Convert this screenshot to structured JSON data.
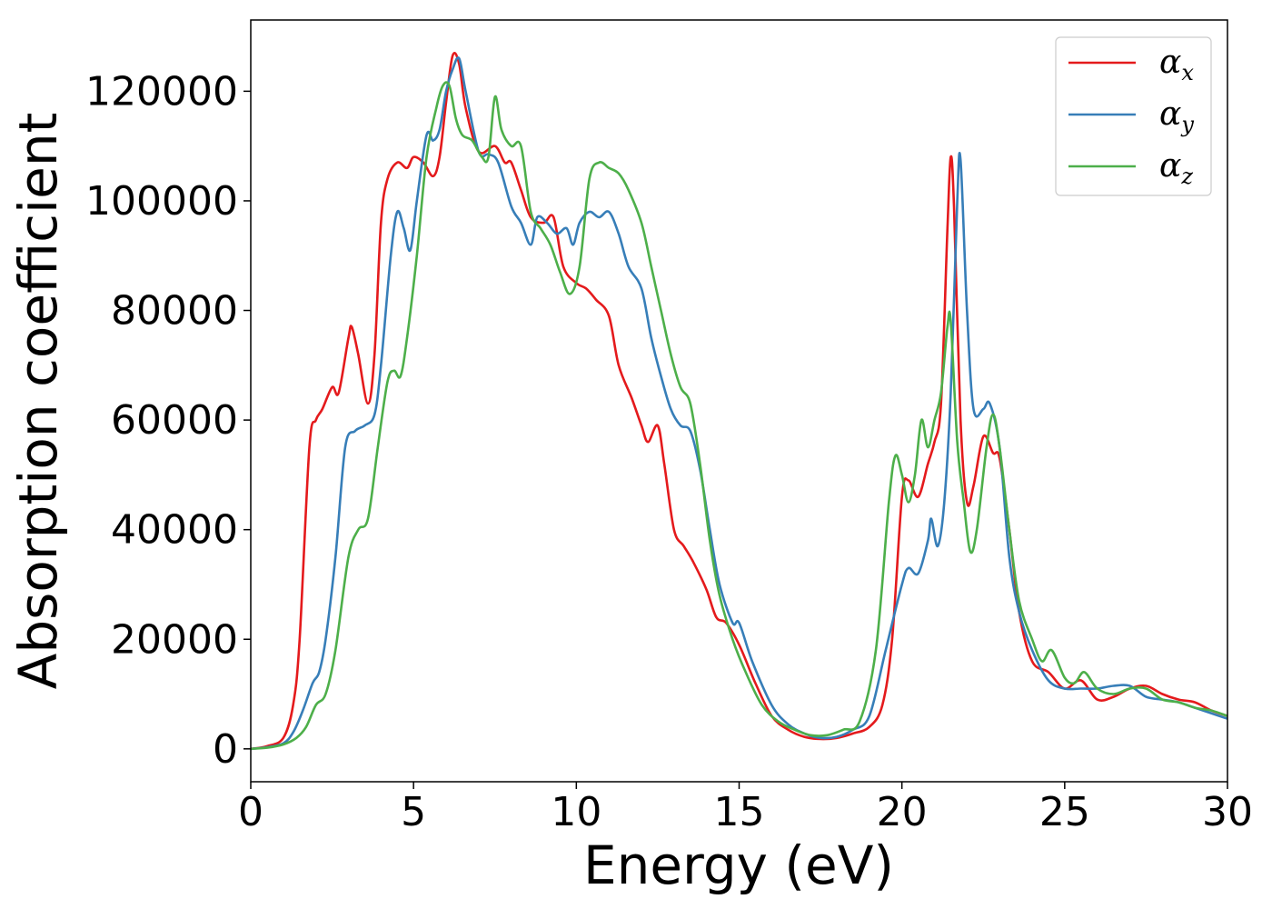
{
  "chart_data": {
    "type": "line",
    "xlabel": "Energy (eV)",
    "ylabel": "Absorption coefficient",
    "xlim": [
      0,
      30
    ],
    "ylim": [
      -6000,
      133000
    ],
    "xticks": [
      0,
      5,
      10,
      15,
      20,
      25,
      30
    ],
    "yticks": [
      0,
      20000,
      40000,
      60000,
      80000,
      100000,
      120000
    ],
    "grid": false,
    "legend_position": "top-right",
    "series": [
      {
        "name": "α_x",
        "color": "#e41a1c",
        "x": [
          0,
          0.5,
          1.0,
          1.3,
          1.5,
          1.8,
          2.0,
          2.2,
          2.5,
          2.7,
          3.0,
          3.1,
          3.3,
          3.6,
          3.8,
          4.0,
          4.2,
          4.5,
          4.8,
          5.0,
          5.3,
          5.6,
          5.8,
          6.0,
          6.2,
          6.4,
          6.6,
          7.0,
          7.5,
          7.8,
          8.0,
          8.3,
          8.6,
          9.0,
          9.3,
          9.6,
          10.0,
          10.3,
          10.6,
          11.0,
          11.3,
          11.7,
          12.0,
          12.2,
          12.5,
          12.7,
          13.0,
          13.3,
          13.6,
          14.0,
          14.3,
          14.6,
          15.0,
          15.5,
          16.0,
          16.5,
          17.0,
          17.5,
          18.0,
          18.5,
          19.0,
          19.4,
          19.7,
          20.0,
          20.2,
          20.5,
          20.8,
          21.0,
          21.2,
          21.4,
          21.5,
          21.6,
          21.8,
          22.0,
          22.2,
          22.5,
          22.8,
          23.0,
          23.3,
          23.6,
          24.0,
          24.5,
          25.0,
          25.5,
          26.0,
          26.5,
          27.0,
          27.5,
          28.0,
          28.5,
          29.0,
          29.5,
          30.0
        ],
        "y": [
          0,
          500,
          2000,
          8000,
          20000,
          55000,
          60000,
          62000,
          66000,
          65000,
          75000,
          77000,
          72000,
          63000,
          72000,
          96000,
          104000,
          107000,
          106000,
          108000,
          107000,
          104500,
          108000,
          118000,
          126500,
          125000,
          117000,
          109000,
          110000,
          107000,
          107000,
          102000,
          97000,
          96000,
          97000,
          88000,
          85000,
          84000,
          82000,
          79000,
          70000,
          64000,
          59000,
          56000,
          59000,
          52000,
          40000,
          37000,
          34000,
          29000,
          24000,
          23000,
          19000,
          12000,
          6000,
          3500,
          2200,
          1800,
          2000,
          2800,
          4000,
          8000,
          20000,
          46000,
          49000,
          46000,
          52000,
          56000,
          63000,
          95000,
          108000,
          99000,
          60000,
          45000,
          48000,
          57000,
          54000,
          53000,
          40000,
          25000,
          16000,
          14000,
          11000,
          12500,
          9000,
          9500,
          11000,
          11500,
          10000,
          9000,
          8500,
          7000,
          6000
        ]
      },
      {
        "name": "α_y",
        "color": "#377eb8",
        "x": [
          0,
          0.5,
          1.0,
          1.3,
          1.6,
          1.9,
          2.1,
          2.3,
          2.6,
          2.9,
          3.2,
          3.5,
          3.8,
          4.0,
          4.3,
          4.5,
          4.7,
          4.9,
          5.1,
          5.4,
          5.6,
          5.8,
          6.0,
          6.2,
          6.4,
          6.6,
          7.0,
          7.3,
          7.6,
          8.0,
          8.3,
          8.6,
          8.8,
          9.1,
          9.4,
          9.7,
          9.9,
          10.1,
          10.4,
          10.7,
          11.0,
          11.3,
          11.6,
          12.0,
          12.3,
          12.6,
          12.9,
          13.2,
          13.5,
          13.8,
          14.1,
          14.4,
          14.8,
          15.0,
          15.4,
          16.0,
          16.5,
          17.0,
          17.5,
          18.0,
          18.5,
          19.0,
          19.5,
          20.0,
          20.2,
          20.5,
          20.8,
          20.9,
          21.1,
          21.3,
          21.5,
          21.7,
          21.8,
          22.0,
          22.2,
          22.5,
          22.7,
          23.0,
          23.3,
          23.6,
          24.0,
          24.5,
          25.0,
          25.5,
          26.0,
          26.5,
          27.0,
          27.5,
          28.0,
          28.5,
          29.0,
          29.5,
          30.0
        ],
        "y": [
          0,
          300,
          1000,
          3000,
          7000,
          12000,
          14000,
          20000,
          35000,
          55000,
          58000,
          59000,
          61000,
          70000,
          90000,
          98000,
          95000,
          91000,
          100000,
          112000,
          111000,
          113000,
          120000,
          124000,
          126000,
          120000,
          109000,
          108500,
          107000,
          99000,
          96000,
          92000,
          97000,
          96000,
          94000,
          95000,
          92000,
          96000,
          98000,
          97000,
          98000,
          94000,
          88000,
          84000,
          75000,
          68000,
          62000,
          59000,
          58000,
          51000,
          40000,
          30000,
          23000,
          23000,
          16000,
          8000,
          4500,
          2800,
          2000,
          2200,
          3500,
          6000,
          18000,
          30000,
          33000,
          32000,
          38000,
          42000,
          37000,
          45000,
          65000,
          100000,
          107500,
          80000,
          62000,
          62000,
          63000,
          55000,
          35000,
          25000,
          18000,
          12500,
          11000,
          11000,
          11000,
          11500,
          11500,
          9500,
          9000,
          8500,
          7500,
          6500,
          5500
        ]
      },
      {
        "name": "α_z",
        "color": "#4daf4a",
        "x": [
          0,
          0.5,
          1.0,
          1.4,
          1.7,
          2.0,
          2.3,
          2.6,
          3.0,
          3.3,
          3.6,
          3.9,
          4.2,
          4.4,
          4.6,
          4.8,
          5.1,
          5.4,
          5.7,
          5.9,
          6.1,
          6.3,
          6.5,
          6.8,
          7.1,
          7.3,
          7.5,
          7.7,
          8.0,
          8.3,
          8.6,
          8.9,
          9.2,
          9.5,
          9.8,
          10.1,
          10.4,
          10.7,
          11.0,
          11.3,
          11.6,
          12.0,
          12.3,
          12.6,
          12.9,
          13.2,
          13.5,
          13.8,
          14.1,
          14.4,
          14.8,
          15.2,
          15.7,
          16.2,
          16.7,
          17.2,
          17.7,
          18.2,
          18.7,
          19.2,
          19.6,
          19.8,
          20.0,
          20.2,
          20.4,
          20.6,
          20.8,
          21.0,
          21.2,
          21.4,
          21.5,
          21.7,
          21.9,
          22.1,
          22.3,
          22.6,
          22.8,
          23.0,
          23.3,
          23.6,
          24.0,
          24.3,
          24.6,
          25.0,
          25.3,
          25.6,
          26.0,
          26.5,
          27.0,
          27.5,
          28.0,
          28.5,
          29.0,
          29.5,
          30.0
        ],
        "y": [
          0,
          200,
          800,
          2000,
          4000,
          8000,
          10000,
          18000,
          35000,
          40000,
          42000,
          55000,
          67000,
          69000,
          68000,
          75000,
          90000,
          108000,
          117000,
          121000,
          121000,
          115000,
          112000,
          111000,
          108000,
          108000,
          119000,
          113000,
          110000,
          110000,
          98000,
          95000,
          92000,
          87000,
          83000,
          88000,
          104000,
          107000,
          106000,
          105000,
          102000,
          96000,
          88000,
          80000,
          72000,
          66000,
          63000,
          52000,
          38000,
          28000,
          20000,
          14000,
          8000,
          5000,
          3500,
          2500,
          2500,
          3500,
          5000,
          18000,
          45000,
          53500,
          50000,
          45000,
          50000,
          60000,
          55000,
          60000,
          65000,
          77000,
          78000,
          56000,
          45000,
          36000,
          40000,
          55000,
          61000,
          55000,
          40000,
          27000,
          20000,
          16000,
          18000,
          13000,
          12000,
          14000,
          11000,
          10000,
          11000,
          11000,
          9000,
          8500,
          7500,
          7000,
          6000
        ]
      }
    ]
  }
}
